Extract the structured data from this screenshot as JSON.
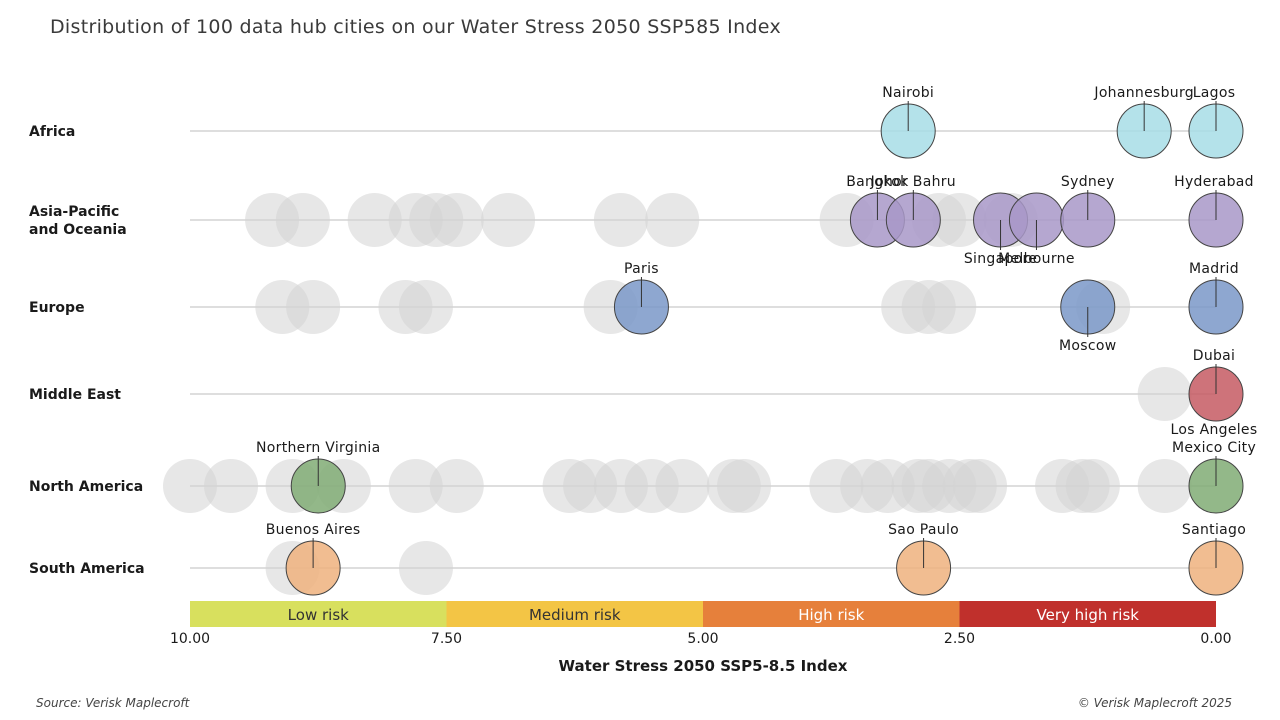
{
  "title": "Distribution of 100 data hub cities on our Water Stress 2050 SSP585 Index",
  "source": "Source: Verisk Maplecroft",
  "copyright": "© Verisk Maplecroft 2025",
  "colors": {
    "Africa": "#a7dde6",
    "Asia-Pacific and Oceania": "#a898c8",
    "Europe": "#7a98c8",
    "Middle East": "#c55a63",
    "North America": "#80ac74",
    "South America": "#eeb27e",
    "grey": "#d4d4d4"
  },
  "chart_data": {
    "type": "scatter",
    "xlabel": "Water Stress 2050 SSP5-8.5 Index",
    "xlim": [
      10,
      0
    ],
    "xticks": [
      "10.00",
      "7.50",
      "5.00",
      "2.50",
      "0.00"
    ],
    "xtick_values": [
      10,
      7.5,
      5,
      2.5,
      0
    ],
    "bands": [
      {
        "label": "Low risk",
        "from": 10,
        "to": 7.5,
        "color": "#d8e05e",
        "text_color": "#333333"
      },
      {
        "label": "Medium risk",
        "from": 7.5,
        "to": 5,
        "color": "#f3c545",
        "text_color": "#333333"
      },
      {
        "label": "High risk",
        "from": 5,
        "to": 2.5,
        "color": "#e6803b",
        "text_color": "#ffffff"
      },
      {
        "label": "Very high risk",
        "from": 2.5,
        "to": 0,
        "color": "#c0302c",
        "text_color": "#ffffff"
      }
    ],
    "regions": [
      {
        "name": "Africa",
        "label_lines": [
          "Africa"
        ],
        "grey": [],
        "cities": [
          {
            "name": "Nairobi",
            "x": 3.0,
            "label_pos": "above"
          },
          {
            "name": "Johannesburg",
            "x": 0.7,
            "label_pos": "above"
          },
          {
            "name": "Lagos",
            "x": 0.0,
            "label_pos": "above"
          }
        ]
      },
      {
        "name": "Asia-Pacific and Oceania",
        "label_lines": [
          "Asia-Pacific",
          "and Oceania"
        ],
        "grey": [
          9.2,
          8.9,
          8.2,
          7.8,
          7.6,
          7.4,
          6.9,
          5.8,
          5.3,
          3.6,
          2.7,
          2.5,
          2.0
        ],
        "cities": [
          {
            "name": "Bangkok",
            "x": 3.3,
            "label_pos": "above"
          },
          {
            "name": "Johor Bahru",
            "x": 2.95,
            "label_pos": "above"
          },
          {
            "name": "Singapore",
            "x": 2.1,
            "label_pos": "below"
          },
          {
            "name": "Melbourne",
            "x": 1.75,
            "label_pos": "below"
          },
          {
            "name": "Sydney",
            "x": 1.25,
            "label_pos": "above"
          },
          {
            "name": "Hyderabad",
            "x": 0.0,
            "label_pos": "above"
          }
        ]
      },
      {
        "name": "Europe",
        "label_lines": [
          "Europe"
        ],
        "grey": [
          9.1,
          8.8,
          7.9,
          7.7,
          5.9,
          3.0,
          2.8,
          2.6,
          1.1
        ],
        "cities": [
          {
            "name": "Paris",
            "x": 5.6,
            "label_pos": "above"
          },
          {
            "name": "Moscow",
            "x": 1.25,
            "label_pos": "below"
          },
          {
            "name": "Madrid",
            "x": 0.0,
            "label_pos": "above"
          }
        ]
      },
      {
        "name": "Middle East",
        "label_lines": [
          "Middle East"
        ],
        "grey": [
          0.5
        ],
        "cities": [
          {
            "name": "Dubai",
            "x": 0.0,
            "label_pos": "above"
          }
        ]
      },
      {
        "name": "North America",
        "label_lines": [
          "North America"
        ],
        "grey": [
          10.0,
          9.6,
          9.0,
          8.5,
          7.8,
          7.4,
          6.3,
          6.1,
          5.8,
          5.5,
          5.2,
          4.7,
          4.6,
          3.7,
          3.4,
          3.2,
          2.9,
          2.8,
          2.6,
          2.4,
          2.3,
          1.5,
          1.3,
          1.2,
          0.5
        ],
        "cities": [
          {
            "name": "Northern Virginia",
            "x": 8.75,
            "label_pos": "above"
          },
          {
            "name": "Los Angeles\nMexico City",
            "x": 0.0,
            "label_pos": "above"
          }
        ]
      },
      {
        "name": "South America",
        "label_lines": [
          "South America"
        ],
        "grey": [
          9.0,
          7.7
        ],
        "cities": [
          {
            "name": "Buenos Aires",
            "x": 8.8,
            "label_pos": "above"
          },
          {
            "name": "Sao Paulo",
            "x": 2.85,
            "label_pos": "above"
          },
          {
            "name": "Santiago",
            "x": 0.0,
            "label_pos": "above"
          }
        ]
      }
    ]
  }
}
